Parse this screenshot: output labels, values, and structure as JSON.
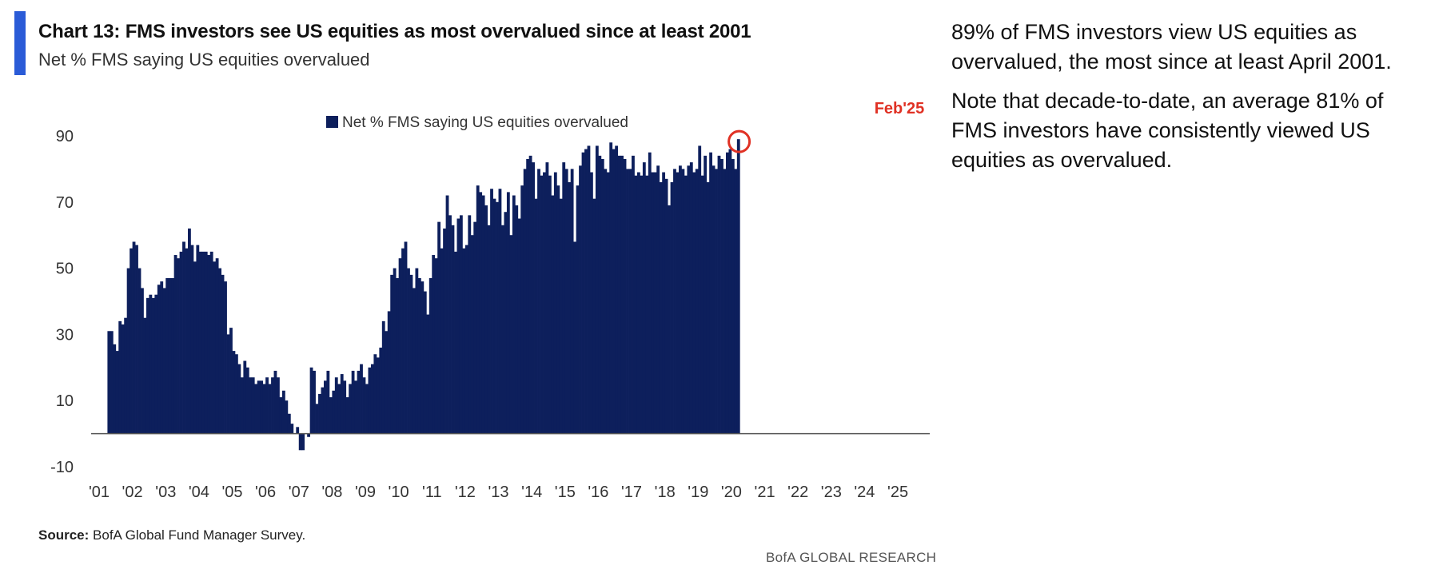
{
  "header": {
    "title": "Chart 13: FMS investors see US equities as most overvalued since at least 2001",
    "subtitle": "Net % FMS saying US equities overvalued"
  },
  "notes": [
    "89% of FMS investors view US equities as overvalued, the most since at least April 2001.",
    "Note that decade-to-date, an average 81% of FMS investors have consistently viewed US equities as overvalued."
  ],
  "footer": {
    "source_label": "Source:",
    "source_text": "BofA Global Fund Manager Survey.",
    "brand": "BofA GLOBAL RESEARCH"
  },
  "colors": {
    "bar": "#0d1f5c",
    "highlight": "#e03124",
    "accent": "#2a5bd7"
  },
  "chart_data": {
    "type": "bar",
    "title": "",
    "xlabel": "",
    "ylabel": "",
    "legend": {
      "label": "Net % FMS saying US equities overvalued",
      "position": "top-center"
    },
    "ylim": [
      -10,
      95
    ],
    "yticks": [
      -10,
      10,
      30,
      50,
      70,
      90
    ],
    "xtick_labels": [
      "'01",
      "'02",
      "'03",
      "'04",
      "'05",
      "'06",
      "'07",
      "'08",
      "'09",
      "'10",
      "'11",
      "'12",
      "'13",
      "'14",
      "'15",
      "'16",
      "'17",
      "'18",
      "'19",
      "'20",
      "'21",
      "'22",
      "'23",
      "'24",
      "'25"
    ],
    "grid": false,
    "annotation": {
      "label": "Feb'25",
      "value": 89
    },
    "x_start": "2001-04",
    "frequency": "monthly",
    "values": [
      31,
      31,
      27,
      25,
      34,
      33,
      35,
      50,
      56,
      58,
      57,
      50,
      44,
      35,
      41,
      42,
      41,
      42,
      45,
      46,
      44,
      47,
      47,
      47,
      54,
      53,
      55,
      58,
      56,
      62,
      57,
      52,
      57,
      55,
      55,
      55,
      54,
      55,
      52,
      53,
      50,
      48,
      46,
      30,
      32,
      25,
      24,
      21,
      17,
      22,
      20,
      17,
      17,
      15,
      16,
      16,
      15,
      17,
      15,
      17,
      19,
      17,
      11,
      13,
      10,
      6,
      3,
      0,
      2,
      -5,
      -5,
      0,
      -1,
      20,
      19,
      9,
      12,
      14,
      16,
      19,
      11,
      13,
      17,
      15,
      18,
      16,
      11,
      15,
      19,
      16,
      19,
      21,
      17,
      15,
      20,
      21,
      24,
      23,
      26,
      34,
      31,
      37,
      48,
      50,
      47,
      53,
      56,
      58,
      50,
      48,
      44,
      50,
      47,
      46,
      43,
      36,
      47,
      54,
      53,
      64,
      56,
      62,
      72,
      66,
      63,
      55,
      65,
      66,
      56,
      57,
      66,
      60,
      64,
      75,
      73,
      72,
      69,
      63,
      74,
      71,
      70,
      74,
      63,
      67,
      73,
      60,
      72,
      69,
      65,
      75,
      80,
      83,
      84,
      82,
      71,
      80,
      78,
      79,
      82,
      78,
      72,
      79,
      75,
      71,
      82,
      80,
      76,
      80,
      58,
      75,
      81,
      85,
      86,
      87,
      79,
      71,
      87,
      84,
      83,
      80,
      79,
      88,
      86,
      87,
      84,
      84,
      83,
      80,
      80,
      84,
      78,
      79,
      78,
      82,
      78,
      85,
      79,
      79,
      81,
      76,
      79,
      77,
      69,
      76,
      80,
      79,
      81,
      80,
      78,
      81,
      82,
      79,
      80,
      87,
      78,
      84,
      76,
      85,
      81,
      80,
      84,
      83,
      80,
      85,
      86,
      83,
      80,
      89
    ]
  }
}
